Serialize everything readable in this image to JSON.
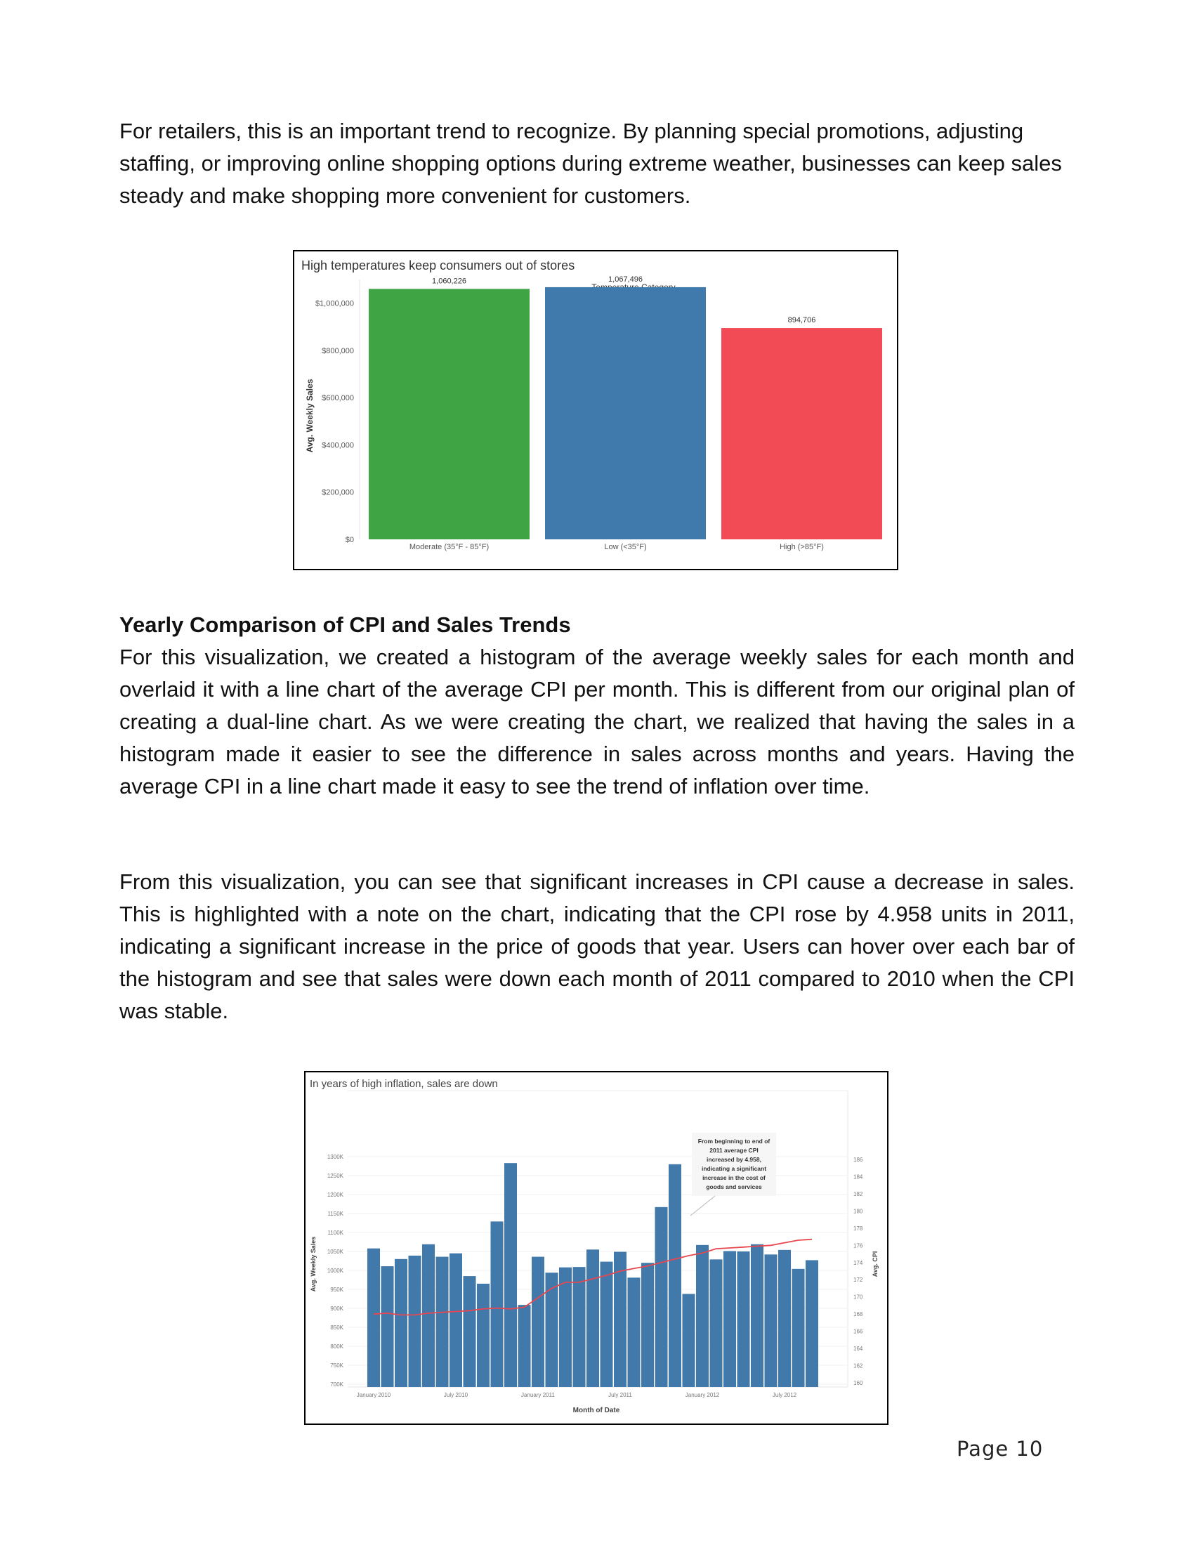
{
  "paragraphs": {
    "intro": " For retailers, this is an important trend to recognize. By planning special promotions, adjusting staffing, or improving online shopping options during extreme weather, businesses can keep sales steady and make shopping more convenient for customers.",
    "section_heading": "Yearly Comparison of CPI and Sales Trends",
    "p1": "For this visualization, we created a histogram of the average weekly sales for each month and overlaid it with a line chart of the average CPI per month. This is different from our original plan of creating a dual-line chart. As we were creating the chart, we realized that having the sales in a histogram made it easier to see the difference in sales across months and years. Having the average CPI in a line chart made it easy to see the trend of inflation over time.",
    "p2": "From this visualization, you can see that significant increases in CPI cause a decrease in sales. This is highlighted with a note on the chart, indicating that the CPI rose by 4.958 units in 2011, indicating a significant increase in the price of goods that year. Users can hover over each bar of the histogram and see that sales were down each month of 2011 compared to 2010 when the CPI was stable."
  },
  "page_number": "Page  10",
  "chart_data": [
    {
      "type": "bar",
      "title": "High temperatures keep consumers out of stores",
      "legend_title": "Temperature Category",
      "ylabel": "Avg. Weekly Sales",
      "ylim": [
        0,
        1100000
      ],
      "yticks": [
        0,
        200000,
        400000,
        600000,
        800000,
        1000000
      ],
      "ytick_labels": [
        "$0",
        "$200,000",
        "$400,000",
        "$600,000",
        "$800,000",
        "$1,000,000"
      ],
      "categories": [
        "Moderate (35°F - 85°F)",
        "Low (<35°F)",
        "High (>85°F)"
      ],
      "values": [
        1060226,
        1067496,
        894706
      ],
      "value_labels": [
        "1,060,226",
        "1,067,496",
        "894,706"
      ],
      "colors": [
        "#3ea444",
        "#4079ab",
        "#f24b55"
      ]
    },
    {
      "type": "bar",
      "title": "In years of high inflation, sales are down",
      "xlabel": "Month of Date",
      "ylabel": "Avg. Weekly Sales",
      "y2label": "Avg. CPI",
      "ylim": [
        700,
        1330
      ],
      "y2lim": [
        160,
        186
      ],
      "yticks": [
        700,
        750,
        800,
        850,
        900,
        950,
        1000,
        1050,
        1100,
        1150,
        1200,
        1250,
        1300
      ],
      "ytick_labels": [
        "700K",
        "750K",
        "800K",
        "850K",
        "900K",
        "950K",
        "1000K",
        "1050K",
        "1100K",
        "1150K",
        "1200K",
        "1250K",
        "1300K"
      ],
      "y2ticks": [
        160,
        162,
        164,
        166,
        168,
        170,
        172,
        174,
        176,
        178,
        180,
        182,
        184,
        186
      ],
      "x_tick_labels": [
        {
          "index": 0,
          "label": "January 2010"
        },
        {
          "index": 6,
          "label": "July 2010"
        },
        {
          "index": 12,
          "label": "January 2011"
        },
        {
          "index": 18,
          "label": "July 2011"
        },
        {
          "index": 24,
          "label": "January 2012"
        },
        {
          "index": 30,
          "label": "July 2012"
        }
      ],
      "bar_color": "#4279ab",
      "line_color": "#e8474f",
      "series": [
        {
          "name": "Avg. Weekly Sales",
          "values": [
            1058,
            1011,
            1030,
            1039,
            1069,
            1036,
            1045,
            985,
            965,
            1129,
            1283,
            909,
            1036,
            994,
            1008,
            1009,
            1055,
            1023,
            1049,
            981,
            1020,
            1167,
            1280,
            938,
            1067,
            1029,
            1051,
            1050,
            1069,
            1042,
            1054,
            1004,
            1027
          ]
        },
        {
          "name": "Avg. CPI",
          "values": [
            168.0,
            168.1,
            167.9,
            167.9,
            168.1,
            168.2,
            168.3,
            168.4,
            168.6,
            168.7,
            168.6,
            168.8,
            169.9,
            171.0,
            171.7,
            171.7,
            172.1,
            172.5,
            173.0,
            173.3,
            173.6,
            174.0,
            174.4,
            174.8,
            175.1,
            175.6,
            175.7,
            175.8,
            175.9,
            176.0,
            176.3,
            176.6,
            176.7
          ]
        }
      ],
      "annotation": "From beginning to end of 2011 average CPI increased by 4.958, indicating a significant increase in the cost of goods and services",
      "annotation_lines": [
        "From beginning to end of",
        "2011 average CPI",
        "increased by 4.958,",
        "indicating a significant",
        "increase in the cost of",
        "goods and services"
      ]
    }
  ]
}
